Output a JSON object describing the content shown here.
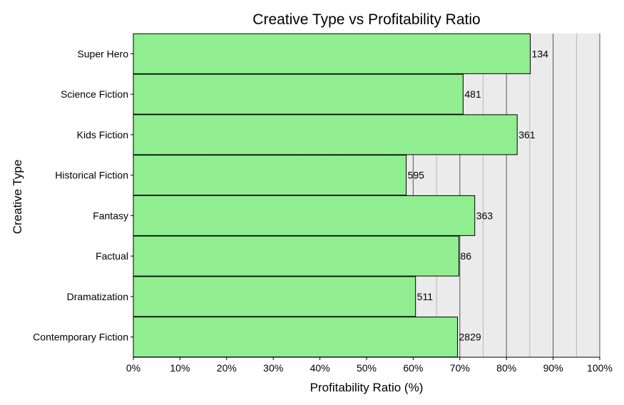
{
  "chart_data": {
    "type": "bar",
    "orientation": "horizontal",
    "title": "Creative Type vs Profitability Ratio",
    "xlabel": "Profitability Ratio (%)",
    "ylabel": "Creative Type",
    "xlim": [
      0,
      100
    ],
    "x_ticks": [
      "0%",
      "10%",
      "20%",
      "30%",
      "40%",
      "50%",
      "60%",
      "70%",
      "80%",
      "90%",
      "100%"
    ],
    "categories": [
      "Super Hero",
      "Science Fiction",
      "Kids Fiction",
      "Historical Fiction",
      "Fantasy",
      "Factual",
      "Dramatization",
      "Contemporary Fiction"
    ],
    "values": [
      85.1,
      70.7,
      82.3,
      58.5,
      73.2,
      69.8,
      60.5,
      69.5
    ],
    "data_labels": [
      "134",
      "481",
      "361",
      "595",
      "363",
      "86",
      "511",
      "2829"
    ],
    "grid": true,
    "bar_color": "#90ee90",
    "bar_edge_color": "#000000",
    "panel_background": "#ebebeb"
  }
}
